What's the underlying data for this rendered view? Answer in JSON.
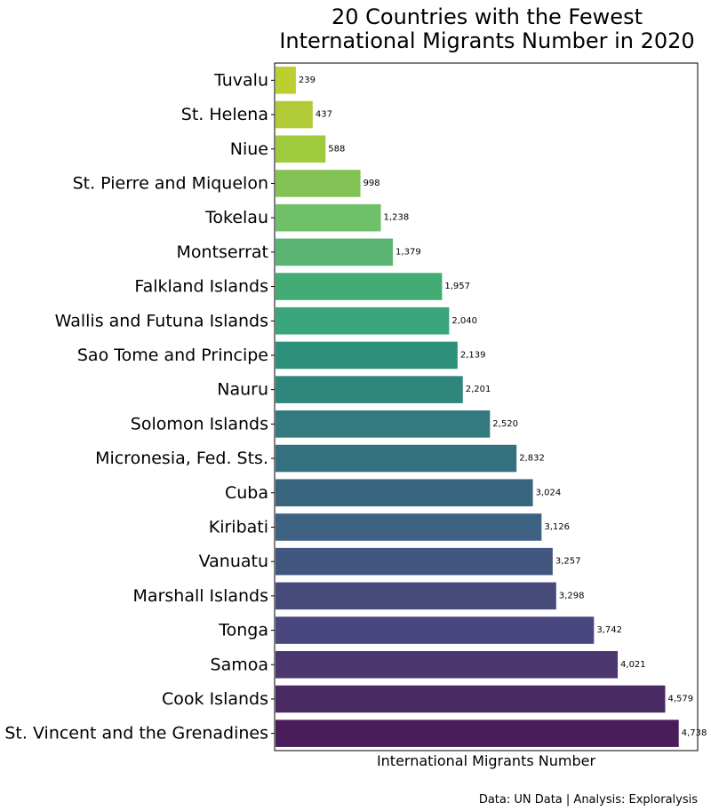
{
  "chart_data": {
    "type": "bar",
    "orientation": "horizontal",
    "title_lines": [
      "20 Countries with the Fewest",
      "International Migrants Number in 2020"
    ],
    "xlabel": "International Migrants Number",
    "ylabel": "",
    "source": "Data: UN Data | Analysis: Exploralysis",
    "xlim": [
      0,
      4950
    ],
    "x_ticks_visible": false,
    "grid": false,
    "legend": "none",
    "colormap": "viridis (reversed: smallest value yellow-green, largest value dark purple)",
    "categories": [
      "Tuvalu",
      "St. Helena",
      "Niue",
      "St. Pierre and Miquelon",
      "Tokelau",
      "Montserrat",
      "Falkland Islands",
      "Wallis and Futuna Islands",
      "Sao Tome and Principe",
      "Nauru",
      "Solomon Islands",
      "Micronesia, Fed. Sts.",
      "Cuba",
      "Kiribati",
      "Vanuatu",
      "Marshall Islands",
      "Tonga",
      "Samoa",
      "Cook Islands",
      "St. Vincent and the Grenadines"
    ],
    "values": [
      239,
      437,
      588,
      998,
      1238,
      1379,
      1957,
      2040,
      2139,
      2201,
      2520,
      2832,
      3024,
      3126,
      3257,
      3298,
      3742,
      4021,
      4579,
      4738
    ],
    "value_labels": [
      "239",
      "437",
      "588",
      "998",
      "1,238",
      "1,379",
      "1,957",
      "2,040",
      "2,139",
      "2,201",
      "2,520",
      "2,832",
      "3,024",
      "3,126",
      "3,257",
      "3,298",
      "3,742",
      "4,021",
      "4,579",
      "4,738"
    ],
    "colors": [
      "#bcce30",
      "#b0cb36",
      "#9ecb3e",
      "#85c255",
      "#70bf69",
      "#5ab473",
      "#43ac75",
      "#38a57c",
      "#2e8f7b",
      "#2e867d",
      "#327a80",
      "#35707f",
      "#39657f",
      "#3d6282",
      "#42577f",
      "#474b7b",
      "#4a4780",
      "#4b366f",
      "#4a2a62",
      "#4a1c5a"
    ]
  }
}
